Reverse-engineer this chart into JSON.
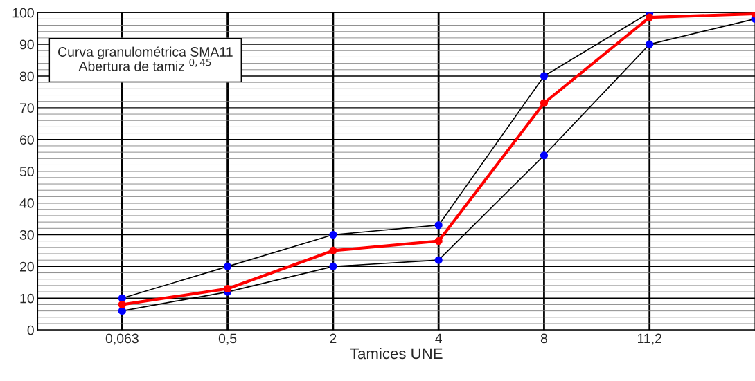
{
  "chart_data": {
    "type": "line",
    "xlabel": "Tamices UNE",
    "annotations": [
      "Curva granulométrica SMA11",
      "Abertura de tamiz $^{0,45}$"
    ],
    "categories": [
      "0,063",
      "0,5",
      "2",
      "4",
      "8",
      "11,2",
      null
    ],
    "ylim": [
      0,
      100
    ],
    "yticks": [
      0,
      {
        "value": 2,
        "label": null
      },
      {
        "value": 4,
        "label": null
      },
      {
        "value": 6,
        "label": null
      },
      {
        "value": 8,
        "label": null
      },
      10,
      {
        "value": 12,
        "label": null
      },
      {
        "value": 14,
        "label": null
      },
      {
        "value": 16,
        "label": null
      },
      {
        "value": 18,
        "label": null
      },
      20,
      {
        "value": 22,
        "label": null
      },
      {
        "value": 24,
        "label": null
      },
      {
        "value": 26,
        "label": null
      },
      {
        "value": 28,
        "label": null
      },
      30,
      {
        "value": 32,
        "label": null
      },
      {
        "value": 34,
        "label": null
      },
      {
        "value": 36,
        "label": null
      },
      {
        "value": 38,
        "label": null
      },
      40,
      {
        "value": 42,
        "label": null
      },
      {
        "value": 44,
        "label": null
      },
      {
        "value": 46,
        "label": null
      },
      {
        "value": 48,
        "label": null
      },
      50,
      {
        "value": 52,
        "label": null
      },
      {
        "value": 54,
        "label": null
      },
      {
        "value": 56,
        "label": null
      },
      {
        "value": 58,
        "label": null
      },
      60,
      {
        "value": 62,
        "label": null
      },
      {
        "value": 64,
        "label": null
      },
      {
        "value": 66,
        "label": null
      },
      {
        "value": 68,
        "label": null
      },
      70,
      {
        "value": 72,
        "label": null
      },
      {
        "value": 74,
        "label": null
      },
      {
        "value": 76,
        "label": null
      },
      {
        "value": 78,
        "label": null
      },
      80,
      {
        "value": 82,
        "label": null
      },
      {
        "value": 84,
        "label": null
      },
      {
        "value": 86,
        "label": null
      },
      {
        "value": 88,
        "label": null
      },
      90,
      {
        "value": 92,
        "label": null
      },
      {
        "value": 94,
        "label": null
      },
      {
        "value": 96,
        "label": null
      },
      {
        "value": 98,
        "label": null
      },
      100
    ],
    "grid": true,
    "marker": "circle",
    "series": [
      {
        "color": "#000000",
        "colors": [
          "#0000ff",
          "#0000ff",
          "#0000ff",
          "#0000ff",
          "#0000ff",
          "#0000ff",
          "#0000ff"
        ],
        "values": [
          10,
          20,
          30,
          33,
          80,
          100,
          null
        ]
      },
      {
        "color": "#000000",
        "colors": [
          "#0000ff",
          "#0000ff",
          "#0000ff",
          "#0000ff",
          "#0000ff",
          "#0000ff",
          "#0000ff"
        ],
        "values": [
          6,
          12,
          20,
          22,
          55,
          90,
          98
        ]
      },
      {
        "color": "#ff0000",
        "colors": [
          "#ff0000",
          "#ff0000",
          "#ff0000",
          "#ff0000",
          "#ff0000",
          "#ff0000",
          "#ff0000"
        ],
        "values": [
          8,
          13,
          25,
          28,
          71.5,
          98.5,
          99.6
        ]
      }
    ]
  }
}
